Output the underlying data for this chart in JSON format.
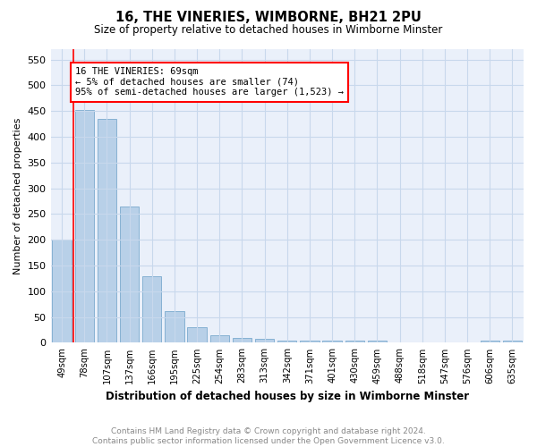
{
  "title": "16, THE VINERIES, WIMBORNE, BH21 2PU",
  "subtitle": "Size of property relative to detached houses in Wimborne Minster",
  "xlabel": "Distribution of detached houses by size in Wimborne Minster",
  "ylabel": "Number of detached properties",
  "categories": [
    "49sqm",
    "78sqm",
    "107sqm",
    "137sqm",
    "166sqm",
    "195sqm",
    "225sqm",
    "254sqm",
    "283sqm",
    "313sqm",
    "342sqm",
    "371sqm",
    "401sqm",
    "430sqm",
    "459sqm",
    "488sqm",
    "518sqm",
    "547sqm",
    "576sqm",
    "606sqm",
    "635sqm"
  ],
  "values": [
    200,
    452,
    435,
    265,
    130,
    62,
    30,
    15,
    10,
    8,
    5,
    5,
    5,
    5,
    4,
    0,
    0,
    0,
    0,
    5,
    5
  ],
  "bar_color": "#b8d0e8",
  "bar_edge_color": "#7aaace",
  "annotation_text": "16 THE VINERIES: 69sqm\n← 5% of detached houses are smaller (74)\n95% of semi-detached houses are larger (1,523) →",
  "vline_x_index": 0,
  "ylim": [
    0,
    570
  ],
  "yticks": [
    0,
    50,
    100,
    150,
    200,
    250,
    300,
    350,
    400,
    450,
    500,
    550
  ],
  "footer_text": "Contains HM Land Registry data © Crown copyright and database right 2024.\nContains public sector information licensed under the Open Government Licence v3.0.",
  "grid_color": "#c8d8ec",
  "background_color": "#eaf0fa"
}
